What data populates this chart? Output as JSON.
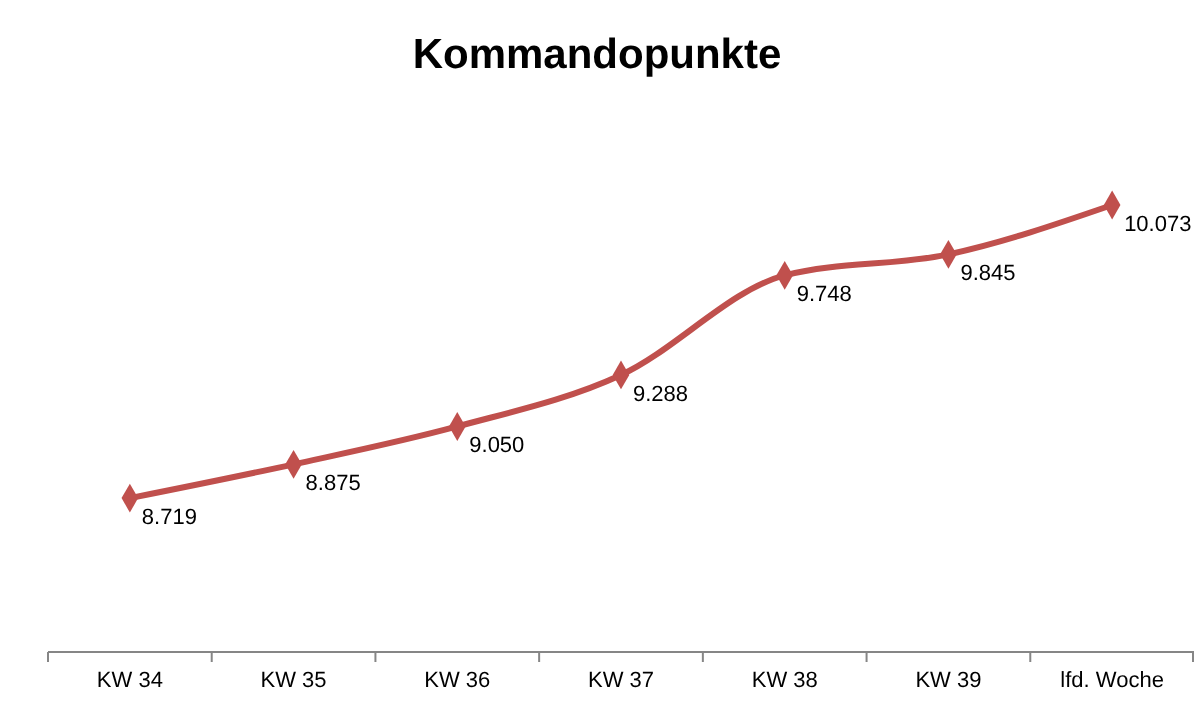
{
  "chart_data": {
    "type": "line",
    "title": "Kommandopunkte",
    "categories": [
      "KW 34",
      "KW 35",
      "KW 36",
      "KW 37",
      "KW 38",
      "KW 39",
      "lfd. Woche"
    ],
    "series": [
      {
        "color": "#c0504d",
        "values": [
          8719,
          8875,
          9050,
          9288,
          9748,
          9845,
          10073
        ],
        "value_labels": [
          "8.719",
          "8.875",
          "9.050",
          "9.288",
          "9.748",
          "9.845",
          "10.073"
        ]
      }
    ],
    "tick_labels": "x",
    "marker": "diamond",
    "line_style": "solid",
    "grid": false
  }
}
